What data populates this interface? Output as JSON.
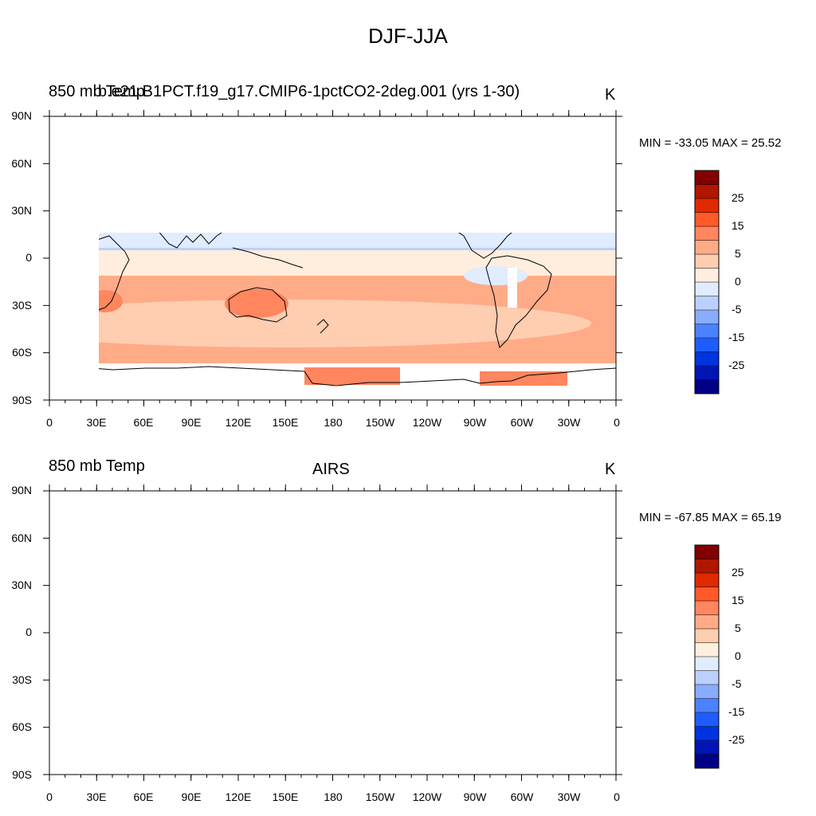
{
  "figure": {
    "title": "DJF-JJA",
    "units": "K",
    "lat_labels": [
      "90N",
      "60N",
      "30N",
      "0",
      "30S",
      "60S",
      "90S"
    ],
    "lon_labels": [
      "0",
      "30E",
      "60E",
      "90E",
      "120E",
      "150E",
      "180",
      "150W",
      "120W",
      "90W",
      "60W",
      "30W",
      "0"
    ]
  },
  "colorbar": {
    "levels": [
      -30,
      -25,
      -20,
      -15,
      -10,
      -5,
      0,
      5,
      10,
      15,
      20,
      25,
      30
    ],
    "labels": [
      "25",
      "15",
      "5",
      "0",
      "-5",
      "-15",
      "-25"
    ],
    "colors": [
      "#000086",
      "#0015b4",
      "#0033e0",
      "#1e5cff",
      "#4a82ff",
      "#88acff",
      "#bcd0ff",
      "#e0ecff",
      "#ffeede",
      "#ffcdb0",
      "#ffab88",
      "#ff865f",
      "#ff5a28",
      "#e02a00",
      "#b01600",
      "#820000"
    ]
  },
  "panels": [
    {
      "left_title": "850 mb Temp",
      "center_title": "b.e21.B1PCT.f19_g17.CMIP6-1pctCO2-2deg.001 (yrs 1-30)",
      "units": "K",
      "min_max": "MIN = -33.05 MAX =  25.52",
      "min": -33.05,
      "max": 25.52
    },
    {
      "left_title": "850 mb Temp",
      "center_title": "AIRS",
      "units": "K",
      "min_max": "MIN = -67.85 MAX =  65.19",
      "min": -67.85,
      "max": 65.19
    }
  ]
}
